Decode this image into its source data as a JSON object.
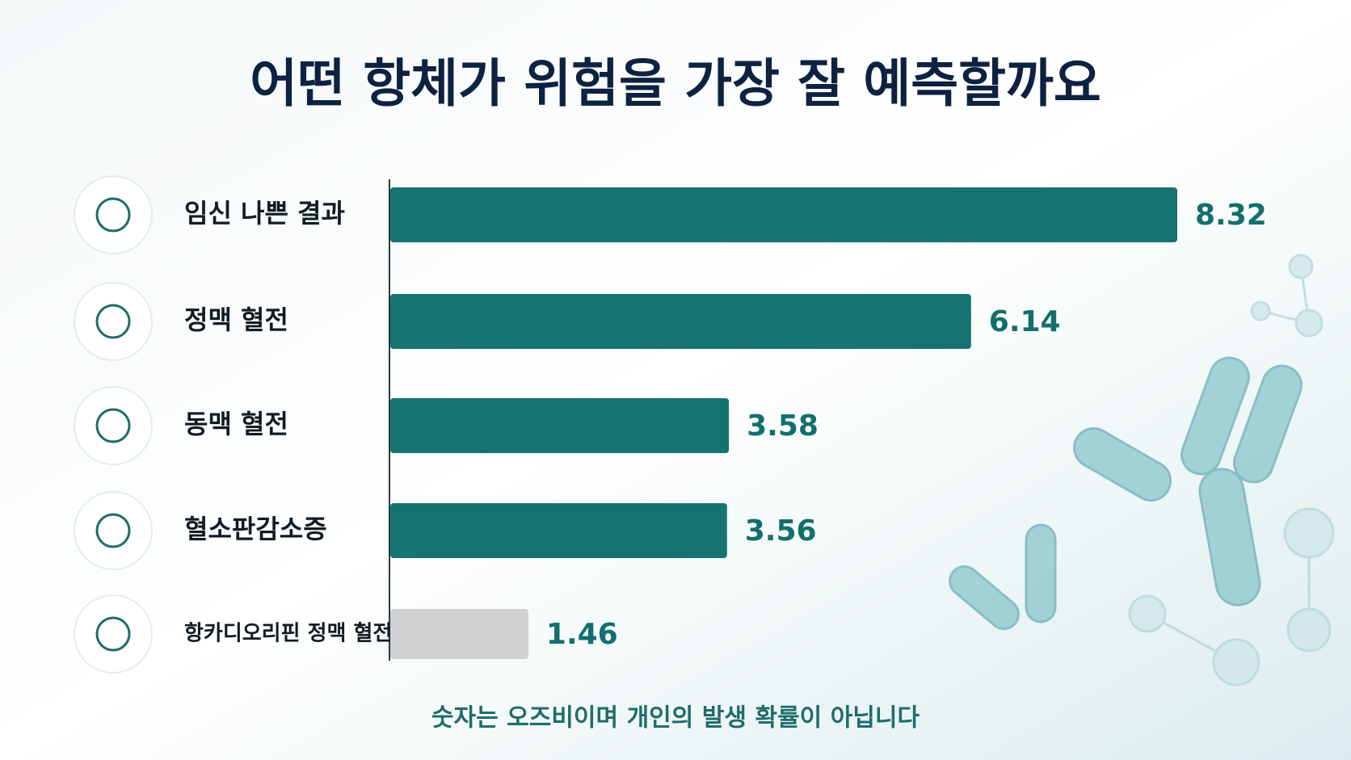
{
  "chart_data": {
    "type": "bar",
    "orientation": "horizontal",
    "title": "어떤 항체가 위험을 가장 잘 예측할까요",
    "categories": [
      "임신 나쁜 결과",
      "정맥 혈전",
      "동맥 혈전",
      "혈소판감소증",
      "항카디오리핀 정맥 혈전"
    ],
    "values": [
      8.32,
      6.14,
      3.58,
      3.56,
      1.46
    ],
    "colors": [
      "#157372",
      "#157372",
      "#157372",
      "#157372",
      "#cfd1d3"
    ],
    "footnote": "숫자는 오즈비이며 개인의 발생 확률이 아닙니다"
  }
}
